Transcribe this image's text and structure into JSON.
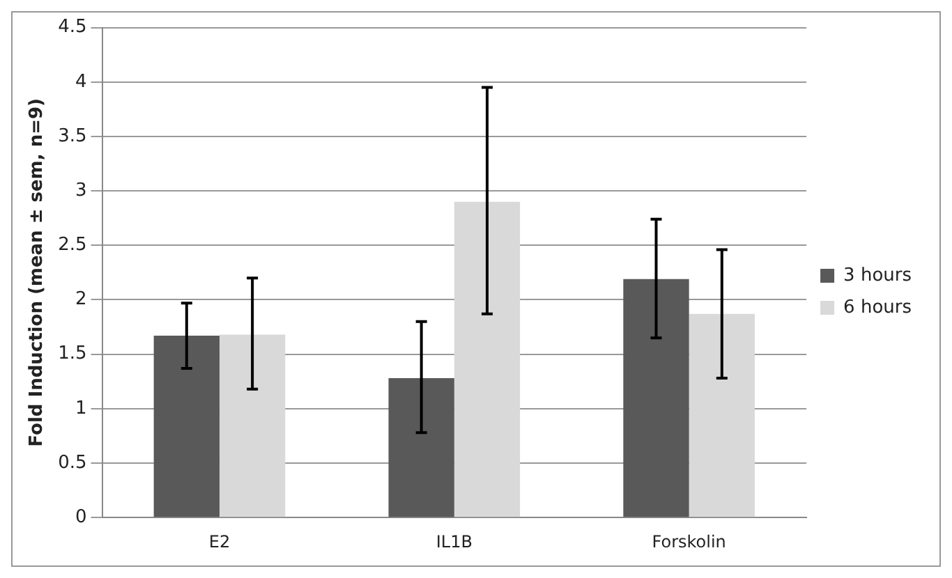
{
  "chart_data": {
    "type": "bar",
    "ylabel": "Fold Induction (mean ± sem, n=9)",
    "categories": [
      "E2",
      "IL1B",
      "Forskolin"
    ],
    "series": [
      {
        "name": "3 hours",
        "color": "#595959",
        "values": [
          1.67,
          1.28,
          2.19
        ],
        "errors": [
          [
            1.37,
            1.97
          ],
          [
            0.78,
            1.8
          ],
          [
            1.65,
            2.74
          ]
        ]
      },
      {
        "name": "6 hours",
        "color": "#d9d9d9",
        "values": [
          1.68,
          2.9,
          1.87
        ],
        "errors": [
          [
            1.18,
            2.2
          ],
          [
            1.87,
            3.95
          ],
          [
            1.28,
            2.46
          ]
        ]
      }
    ],
    "ylim": [
      0,
      4.5
    ],
    "yticks": [
      0,
      0.5,
      1,
      1.5,
      2,
      2.5,
      3,
      3.5,
      4,
      4.5
    ],
    "grid": "y",
    "legend": "right"
  }
}
